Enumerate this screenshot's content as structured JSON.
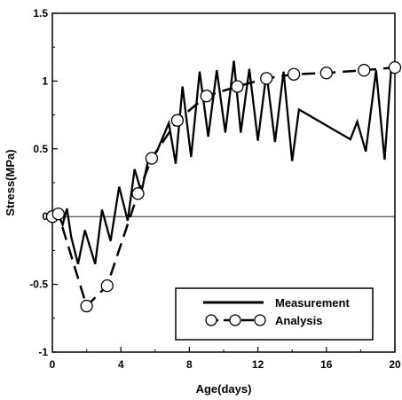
{
  "chart_data": {
    "type": "line",
    "title": "",
    "xlabel": "Age(days)",
    "ylabel": "Stress(MPa)",
    "xlim": [
      0,
      20
    ],
    "ylim": [
      -1,
      1.5
    ],
    "x_ticks": [
      0,
      4,
      8,
      12,
      16,
      20
    ],
    "x_tick_labels": [
      "0",
      "4",
      "8",
      "12",
      "16",
      "20"
    ],
    "y_ticks": [
      -1,
      -0.5,
      0,
      0.5,
      1,
      1.5
    ],
    "y_tick_labels": [
      "-1",
      "-0.5",
      "0",
      "0.5",
      "1",
      "1.5"
    ],
    "zero_line": true,
    "legend_position": "bottom-right",
    "series": [
      {
        "name": "Measurement",
        "style": "solid",
        "marker": "none",
        "points": [
          [
            0.0,
            0.0
          ],
          [
            0.3,
            0.03
          ],
          [
            0.6,
            -0.06
          ],
          [
            0.85,
            0.06
          ],
          [
            1.1,
            -0.15
          ],
          [
            1.5,
            -0.35
          ],
          [
            1.9,
            -0.1
          ],
          [
            2.5,
            -0.35
          ],
          [
            2.9,
            0.05
          ],
          [
            3.4,
            -0.18
          ],
          [
            3.9,
            0.22
          ],
          [
            4.4,
            -0.03
          ],
          [
            4.8,
            0.35
          ],
          [
            5.2,
            0.18
          ],
          [
            5.6,
            0.42
          ],
          [
            6.1,
            0.48
          ],
          [
            6.8,
            0.69
          ],
          [
            7.2,
            0.39
          ],
          [
            7.6,
            0.96
          ],
          [
            8.1,
            0.44
          ],
          [
            8.6,
            1.07
          ],
          [
            9.1,
            0.59
          ],
          [
            9.6,
            1.08
          ],
          [
            10.1,
            0.62
          ],
          [
            10.6,
            1.15
          ],
          [
            11.0,
            0.62
          ],
          [
            11.5,
            1.09
          ],
          [
            12.0,
            0.56
          ],
          [
            12.5,
            1.06
          ],
          [
            13.0,
            0.55
          ],
          [
            13.5,
            1.07
          ],
          [
            14.0,
            0.41
          ],
          [
            14.4,
            0.79
          ],
          [
            17.4,
            0.57
          ],
          [
            17.8,
            0.7
          ],
          [
            18.3,
            0.48
          ],
          [
            18.9,
            1.08
          ],
          [
            19.4,
            0.42
          ],
          [
            19.8,
            1.12
          ]
        ]
      },
      {
        "name": "Analysis",
        "style": "dashed",
        "marker": "circle",
        "points": [
          [
            0.0,
            0.0
          ],
          [
            0.35,
            0.02
          ],
          [
            2.0,
            -0.66
          ],
          [
            3.2,
            -0.51
          ],
          [
            5.0,
            0.17
          ],
          [
            5.8,
            0.43
          ],
          [
            7.3,
            0.71
          ],
          [
            9.0,
            0.89
          ],
          [
            10.8,
            0.96
          ],
          [
            12.5,
            1.02
          ],
          [
            14.1,
            1.05
          ],
          [
            16.0,
            1.06
          ],
          [
            18.2,
            1.08
          ],
          [
            20.0,
            1.1
          ]
        ]
      }
    ]
  }
}
